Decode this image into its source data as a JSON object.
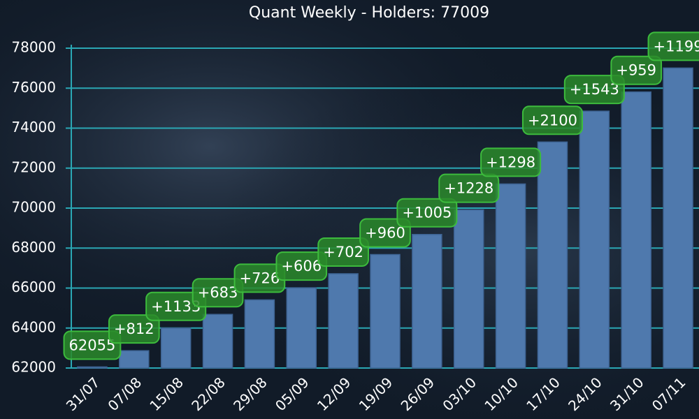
{
  "chart_data": {
    "type": "bar",
    "title": "Quant Weekly - Holders: 77009",
    "categories": [
      "31/07",
      "07/08",
      "15/08",
      "22/08",
      "29/08",
      "05/09",
      "12/09",
      "19/09",
      "26/09",
      "03/10",
      "10/10",
      "17/10",
      "24/10",
      "31/10",
      "07/11"
    ],
    "values": [
      62055,
      62867,
      64000,
      64683,
      65409,
      66015,
      66717,
      67677,
      68682,
      69910,
      71208,
      73308,
      74851,
      75810,
      77009
    ],
    "annotations": [
      "62055",
      "+812",
      "+1133",
      "+683",
      "+726",
      "+606",
      "+702",
      "+960",
      "+1005",
      "+1228",
      "+1298",
      "+2100",
      "+1543",
      "+959",
      "+1199"
    ],
    "color": "#4f79ad",
    "annotation_color": "#2a8a2a",
    "grid_color": "#2aa7b4",
    "ylim": [
      62000,
      78000
    ],
    "yticks": [
      62000,
      64000,
      66000,
      68000,
      70000,
      72000,
      74000,
      76000,
      78000
    ],
    "grid": true
  }
}
